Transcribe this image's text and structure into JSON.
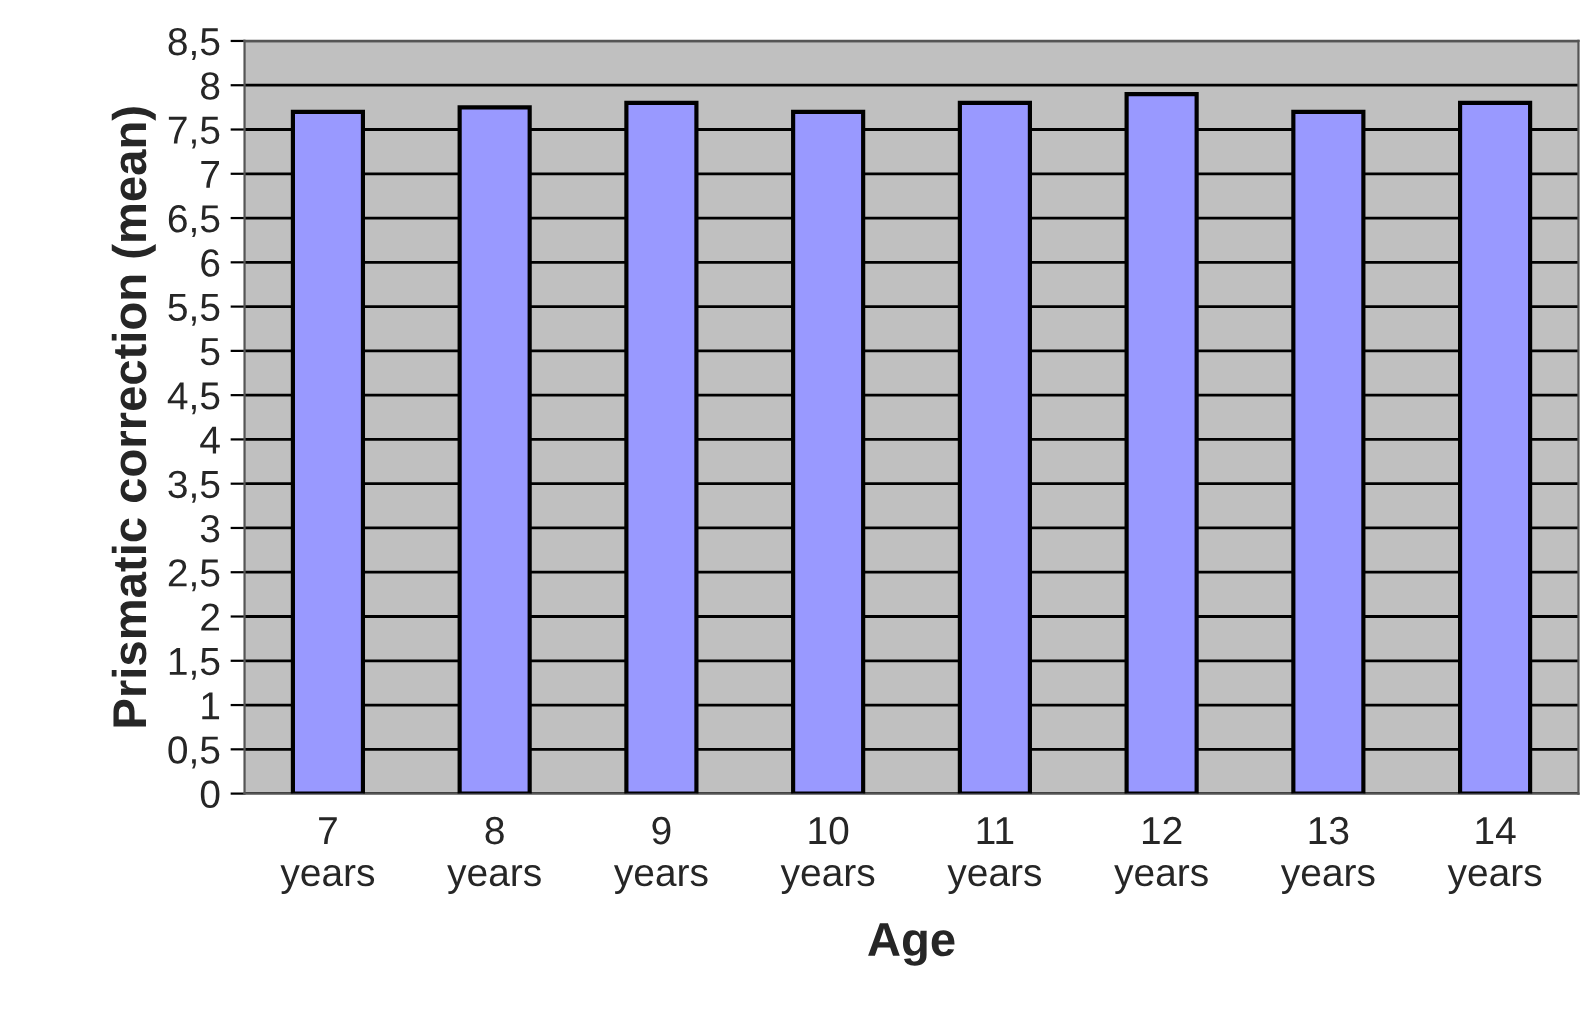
{
  "chart_data": {
    "type": "bar",
    "xlabel": "Age",
    "ylabel": "Prismatic correction (mean)",
    "categories": [
      "7\nyears",
      "8\nyears",
      "9\nyears",
      "10\nyears",
      "11\nyears",
      "12\nyears",
      "13\nyears",
      "14\nyears"
    ],
    "values": [
      7.7,
      7.75,
      7.8,
      7.7,
      7.8,
      7.9,
      7.7,
      7.8
    ],
    "color": "#9999ff",
    "ylim": [
      0,
      8.5
    ],
    "yticks": [
      0,
      {
        "value": 0.5,
        "label": "0,5"
      },
      1,
      {
        "value": 1.5,
        "label": "1,5"
      },
      2,
      {
        "value": 2.5,
        "label": "2,5"
      },
      3,
      {
        "value": 3.5,
        "label": "3,5"
      },
      4,
      {
        "value": 4.5,
        "label": "4,5"
      },
      5,
      {
        "value": 5.5,
        "label": "5,5"
      },
      6,
      {
        "value": 6.5,
        "label": "6,5"
      },
      7,
      {
        "value": 7.5,
        "label": "7,5"
      },
      8,
      {
        "value": 8.5,
        "label": "8,5"
      }
    ],
    "grid": "y"
  }
}
